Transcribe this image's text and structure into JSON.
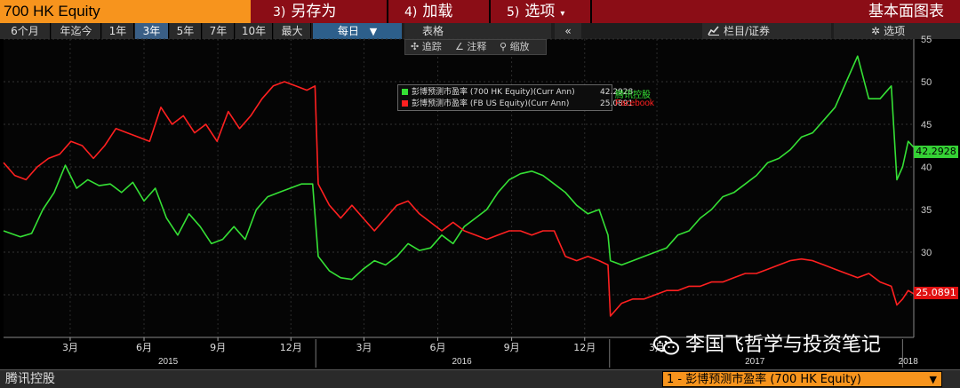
{
  "header": {
    "ticker": "700 HK Equity",
    "menu": [
      {
        "num": "3)",
        "label": "另存为"
      },
      {
        "num": "4)",
        "label": "加载"
      },
      {
        "num": "5)",
        "label": "选项"
      }
    ],
    "template_name": "基本面图表"
  },
  "toolbar": {
    "periods": [
      "6个月",
      "年迄今",
      "1年",
      "3年",
      "5年",
      "7年",
      "10年",
      "最大"
    ],
    "active_period": "3年",
    "frequency": "每日",
    "table_label": "表格",
    "collapse_label": "«",
    "columns_label": "栏目/证券",
    "settings_label": "选项"
  },
  "chart_tools": {
    "track": "追踪",
    "annotate": "注释",
    "zoom": "缩放"
  },
  "legend": [
    {
      "label": "彭博预测市盈率 (700 HK Equity)(Curr Ann)",
      "value": "42.2928",
      "name": "腾讯控股",
      "color": "#35e035"
    },
    {
      "label": "彭博预测市盈率 (FB US Equity)(Curr Ann)",
      "value": "25.0891",
      "name": "Facebook",
      "color": "#ff2020"
    }
  ],
  "badges": {
    "green": "42.2928",
    "red": "25.0891"
  },
  "watermark": "李国飞哲学与投资笔记",
  "bottom": {
    "company": "腾讯控股",
    "series_selector": "1 - 彭博预测市盈率 (700 HK Equity)"
  },
  "colors": {
    "tencent": "#35e035",
    "facebook": "#ff2020",
    "accent": "#f7941d",
    "title_bar": "#8b0d16"
  },
  "chart_data": {
    "type": "line",
    "title": "",
    "xlabel": "",
    "ylabel": "",
    "ylim": [
      20,
      55
    ],
    "yticks": [
      25,
      30,
      35,
      40,
      45,
      50,
      55
    ],
    "y_axis_side": "right",
    "x_range": [
      "2014-12-08",
      "2018-01-15"
    ],
    "month_ticks": [
      {
        "date": "2015-03-01",
        "label": "3月"
      },
      {
        "date": "2015-06-01",
        "label": "6月"
      },
      {
        "date": "2015-09-01",
        "label": "9月"
      },
      {
        "date": "2015-12-01",
        "label": "12月"
      },
      {
        "date": "2016-03-01",
        "label": "3月"
      },
      {
        "date": "2016-06-01",
        "label": "6月"
      },
      {
        "date": "2016-09-01",
        "label": "9月"
      },
      {
        "date": "2016-12-01",
        "label": "12月"
      },
      {
        "date": "2017-03-01",
        "label": "3月"
      }
    ],
    "year_labels": [
      {
        "date": "2015-07-01",
        "label": "2015"
      },
      {
        "date": "2016-07-01",
        "label": "2016"
      },
      {
        "date": "2017-07-01",
        "label": "2017"
      },
      {
        "date": "2018-01-08",
        "label": "2018"
      }
    ],
    "year_boundaries": [
      "2016-01-01",
      "2017-01-01",
      "2018-01-01"
    ],
    "grid": true,
    "legend_position": "top-center",
    "series": [
      {
        "name": "彭博预测市盈率 (700 HK Equity)(Curr Ann)",
        "color": "#35e035",
        "points": [
          [
            "2014-12-08",
            32.5
          ],
          [
            "2014-12-29",
            31.8
          ],
          [
            "2015-01-12",
            32.2
          ],
          [
            "2015-01-26",
            35.0
          ],
          [
            "2015-02-09",
            37.0
          ],
          [
            "2015-02-23",
            40.2
          ],
          [
            "2015-03-09",
            37.5
          ],
          [
            "2015-03-23",
            38.5
          ],
          [
            "2015-04-06",
            37.8
          ],
          [
            "2015-04-20",
            38.0
          ],
          [
            "2015-05-04",
            37.0
          ],
          [
            "2015-05-18",
            38.2
          ],
          [
            "2015-06-01",
            36.0
          ],
          [
            "2015-06-15",
            37.5
          ],
          [
            "2015-06-29",
            34.0
          ],
          [
            "2015-07-13",
            32.0
          ],
          [
            "2015-07-27",
            34.5
          ],
          [
            "2015-08-10",
            33.0
          ],
          [
            "2015-08-24",
            31.0
          ],
          [
            "2015-09-07",
            31.5
          ],
          [
            "2015-09-21",
            33.0
          ],
          [
            "2015-10-05",
            31.5
          ],
          [
            "2015-10-19",
            35.0
          ],
          [
            "2015-11-02",
            36.5
          ],
          [
            "2015-11-16",
            37.0
          ],
          [
            "2015-11-30",
            37.5
          ],
          [
            "2015-12-14",
            38.0
          ],
          [
            "2015-12-28",
            38.0
          ],
          [
            "2016-01-04",
            29.5
          ],
          [
            "2016-01-18",
            27.8
          ],
          [
            "2016-02-01",
            27.0
          ],
          [
            "2016-02-15",
            26.8
          ],
          [
            "2016-02-29",
            28.0
          ],
          [
            "2016-03-14",
            29.0
          ],
          [
            "2016-03-28",
            28.5
          ],
          [
            "2016-04-11",
            29.5
          ],
          [
            "2016-04-25",
            31.0
          ],
          [
            "2016-05-09",
            30.2
          ],
          [
            "2016-05-23",
            30.5
          ],
          [
            "2016-06-06",
            32.0
          ],
          [
            "2016-06-20",
            31.0
          ],
          [
            "2016-07-04",
            33.0
          ],
          [
            "2016-07-18",
            34.0
          ],
          [
            "2016-08-01",
            35.0
          ],
          [
            "2016-08-15",
            37.0
          ],
          [
            "2016-08-29",
            38.5
          ],
          [
            "2016-09-12",
            39.2
          ],
          [
            "2016-09-26",
            39.5
          ],
          [
            "2016-10-10",
            39.0
          ],
          [
            "2016-10-24",
            38.0
          ],
          [
            "2016-11-07",
            37.0
          ],
          [
            "2016-11-21",
            35.5
          ],
          [
            "2016-12-05",
            34.5
          ],
          [
            "2016-12-19",
            35.0
          ],
          [
            "2016-12-30",
            32.0
          ],
          [
            "2017-01-02",
            29.0
          ],
          [
            "2017-01-16",
            28.5
          ],
          [
            "2017-01-30",
            29.0
          ],
          [
            "2017-02-13",
            29.5
          ],
          [
            "2017-02-27",
            30.0
          ],
          [
            "2017-03-13",
            30.5
          ],
          [
            "2017-03-27",
            32.0
          ],
          [
            "2017-04-10",
            32.5
          ],
          [
            "2017-04-24",
            34.0
          ],
          [
            "2017-05-08",
            35.0
          ],
          [
            "2017-05-22",
            36.5
          ],
          [
            "2017-06-05",
            37.0
          ],
          [
            "2017-06-19",
            38.0
          ],
          [
            "2017-07-03",
            39.0
          ],
          [
            "2017-07-17",
            40.5
          ],
          [
            "2017-07-31",
            41.0
          ],
          [
            "2017-08-14",
            42.0
          ],
          [
            "2017-08-28",
            43.5
          ],
          [
            "2017-09-11",
            44.0
          ],
          [
            "2017-09-25",
            45.5
          ],
          [
            "2017-10-09",
            47.0
          ],
          [
            "2017-10-23",
            50.0
          ],
          [
            "2017-11-06",
            53.0
          ],
          [
            "2017-11-20",
            48.0
          ],
          [
            "2017-12-04",
            48.0
          ],
          [
            "2017-12-18",
            49.5
          ],
          [
            "2017-12-25",
            38.5
          ],
          [
            "2018-01-01",
            40.0
          ],
          [
            "2018-01-08",
            43.0
          ],
          [
            "2018-01-15",
            42.2928
          ]
        ]
      },
      {
        "name": "彭博预测市盈率 (FB US Equity)(Curr Ann)",
        "color": "#ff2020",
        "points": [
          [
            "2014-12-08",
            40.5
          ],
          [
            "2014-12-22",
            39.0
          ],
          [
            "2015-01-05",
            38.5
          ],
          [
            "2015-01-19",
            40.0
          ],
          [
            "2015-02-02",
            41.0
          ],
          [
            "2015-02-16",
            41.5
          ],
          [
            "2015-03-02",
            43.0
          ],
          [
            "2015-03-16",
            42.5
          ],
          [
            "2015-03-30",
            41.0
          ],
          [
            "2015-04-13",
            42.5
          ],
          [
            "2015-04-27",
            44.5
          ],
          [
            "2015-05-11",
            44.0
          ],
          [
            "2015-05-25",
            43.5
          ],
          [
            "2015-06-08",
            43.0
          ],
          [
            "2015-06-22",
            47.0
          ],
          [
            "2015-07-06",
            45.0
          ],
          [
            "2015-07-20",
            46.0
          ],
          [
            "2015-08-03",
            44.0
          ],
          [
            "2015-08-17",
            45.0
          ],
          [
            "2015-08-31",
            43.0
          ],
          [
            "2015-09-14",
            46.5
          ],
          [
            "2015-09-28",
            44.5
          ],
          [
            "2015-10-12",
            46.0
          ],
          [
            "2015-10-26",
            48.0
          ],
          [
            "2015-11-09",
            49.5
          ],
          [
            "2015-11-23",
            50.0
          ],
          [
            "2015-12-07",
            49.5
          ],
          [
            "2015-12-21",
            49.0
          ],
          [
            "2015-12-31",
            49.5
          ],
          [
            "2016-01-04",
            38.0
          ],
          [
            "2016-01-18",
            35.5
          ],
          [
            "2016-02-01",
            34.0
          ],
          [
            "2016-02-15",
            35.5
          ],
          [
            "2016-02-29",
            34.0
          ],
          [
            "2016-03-14",
            32.5
          ],
          [
            "2016-03-28",
            34.0
          ],
          [
            "2016-04-11",
            35.5
          ],
          [
            "2016-04-25",
            36.0
          ],
          [
            "2016-05-09",
            34.5
          ],
          [
            "2016-05-23",
            33.5
          ],
          [
            "2016-06-06",
            32.5
          ],
          [
            "2016-06-20",
            33.5
          ],
          [
            "2016-07-04",
            32.5
          ],
          [
            "2016-07-18",
            32.0
          ],
          [
            "2016-08-01",
            31.5
          ],
          [
            "2016-08-15",
            32.0
          ],
          [
            "2016-08-29",
            32.5
          ],
          [
            "2016-09-12",
            32.5
          ],
          [
            "2016-09-26",
            32.0
          ],
          [
            "2016-10-10",
            32.5
          ],
          [
            "2016-10-24",
            32.5
          ],
          [
            "2016-11-07",
            29.5
          ],
          [
            "2016-11-21",
            29.0
          ],
          [
            "2016-12-05",
            29.5
          ],
          [
            "2016-12-19",
            29.0
          ],
          [
            "2016-12-30",
            28.5
          ],
          [
            "2017-01-02",
            22.5
          ],
          [
            "2017-01-16",
            24.0
          ],
          [
            "2017-01-30",
            24.5
          ],
          [
            "2017-02-13",
            24.5
          ],
          [
            "2017-02-27",
            25.0
          ],
          [
            "2017-03-13",
            25.5
          ],
          [
            "2017-03-27",
            25.5
          ],
          [
            "2017-04-10",
            26.0
          ],
          [
            "2017-04-24",
            26.0
          ],
          [
            "2017-05-08",
            26.5
          ],
          [
            "2017-05-22",
            26.5
          ],
          [
            "2017-06-05",
            27.0
          ],
          [
            "2017-06-19",
            27.5
          ],
          [
            "2017-07-03",
            27.5
          ],
          [
            "2017-07-17",
            28.0
          ],
          [
            "2017-07-31",
            28.5
          ],
          [
            "2017-08-14",
            29.0
          ],
          [
            "2017-08-28",
            29.2
          ],
          [
            "2017-09-11",
            29.0
          ],
          [
            "2017-09-25",
            28.5
          ],
          [
            "2017-10-09",
            28.0
          ],
          [
            "2017-10-23",
            27.5
          ],
          [
            "2017-11-06",
            27.0
          ],
          [
            "2017-11-20",
            27.5
          ],
          [
            "2017-12-04",
            26.5
          ],
          [
            "2017-12-18",
            26.0
          ],
          [
            "2017-12-25",
            23.8
          ],
          [
            "2018-01-01",
            24.5
          ],
          [
            "2018-01-08",
            25.5
          ],
          [
            "2018-01-15",
            25.0891
          ]
        ]
      }
    ]
  }
}
